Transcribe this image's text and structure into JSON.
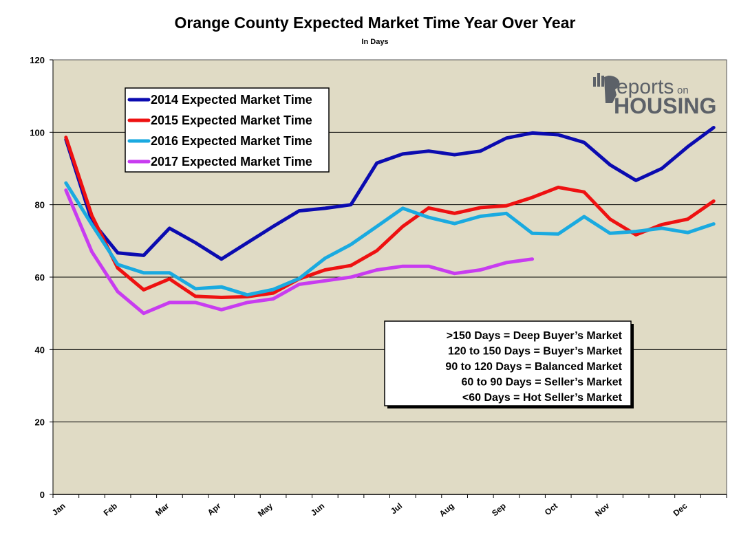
{
  "chart_data": {
    "type": "line",
    "title": "Orange County Expected Market Time Year Over Year",
    "subtitle": "In Days",
    "xlabel": "",
    "ylabel": "",
    "ylim": [
      0,
      120
    ],
    "yticks": [
      0,
      20,
      40,
      60,
      80,
      100,
      120
    ],
    "x_tick_labels": [
      "Jan",
      "Feb",
      "Mar",
      "Apr",
      "May",
      "Jun",
      "Jul",
      "Aug",
      "Sep",
      "Oct",
      "Nov",
      "Dec"
    ],
    "x_tick_positions": [
      0,
      2,
      4,
      6,
      8,
      10,
      13,
      15,
      17,
      19,
      21,
      24
    ],
    "x_periods": 26,
    "grid": "horizontal",
    "legend_position": "top-left",
    "series": [
      {
        "name": "2014 Expected Market Time",
        "color": "#0b0bb0",
        "values": [
          98.0,
          75.5,
          66.7,
          66.0,
          73.5,
          69.5,
          65.0,
          69.5,
          74.0,
          78.3,
          79.0,
          80.0,
          91.5,
          94.0,
          94.8,
          93.8,
          94.8,
          98.4,
          99.8,
          99.3,
          97.2,
          91.0,
          86.7,
          90.0,
          96.0,
          101.3
        ]
      },
      {
        "name": "2015 Expected Market Time",
        "color": "#ee1111",
        "values": [
          98.6,
          77.0,
          62.5,
          56.5,
          59.5,
          54.7,
          54.4,
          54.6,
          55.6,
          59.5,
          62.0,
          63.2,
          67.3,
          74.0,
          79.1,
          77.6,
          79.2,
          79.7,
          82.0,
          84.8,
          83.5,
          76.0,
          71.7,
          74.5,
          76.0,
          81.0
        ]
      },
      {
        "name": "2016 Expected Market Time",
        "color": "#1aaae0",
        "values": [
          86.0,
          74.5,
          63.5,
          61.2,
          61.2,
          56.8,
          57.3,
          55.1,
          56.6,
          59.6,
          65.2,
          69.0,
          74.0,
          79.0,
          76.5,
          74.8,
          76.8,
          77.6,
          72.1,
          71.9,
          76.7,
          72.1,
          72.6,
          73.5,
          72.3,
          74.7
        ]
      },
      {
        "name": "2017 Expected Market Time",
        "color": "#c83cf0",
        "values": [
          84.0,
          67.0,
          56.0,
          50.0,
          53.0,
          53.0,
          51.0,
          53.0,
          54.0,
          58.0,
          59.0,
          60.0,
          62.0,
          63.0,
          63.0,
          61.0,
          62.0,
          64.0,
          65.0
        ]
      }
    ],
    "annotation_lines": [
      ">150 Days = Deep Buyer’s Market",
      "120 to 150 Days = Buyer’s Market",
      "90 to 120 Days = Balanced Market",
      "60 to 90 Days = Seller’s Market",
      "<60 Days = Hot Seller’s Market"
    ]
  },
  "logo": {
    "line1": "eports",
    "line1_small": "on",
    "line2": "HOUSING",
    "color": "#5c6168"
  },
  "colors": {
    "plot_background": "#e0dbc5",
    "gridline": "#000000"
  }
}
